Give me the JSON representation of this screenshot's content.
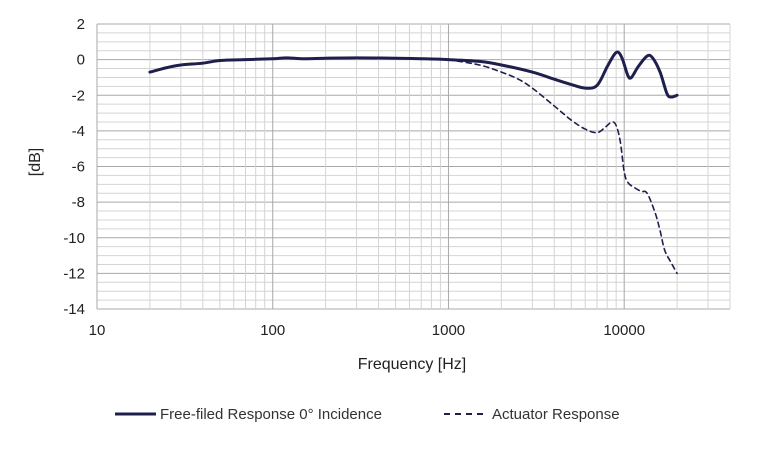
{
  "chart_data": {
    "type": "line",
    "title": "",
    "xlabel": "Frequency [Hz]",
    "ylabel": "[dB]",
    "x_scale": "log",
    "xlim": [
      10,
      40000
    ],
    "ylim": [
      -14,
      2
    ],
    "x_ticks": [
      "10",
      "100",
      "1000",
      "10000"
    ],
    "y_ticks": [
      "2",
      "0",
      "-2",
      "-4",
      "-6",
      "-8",
      "-10",
      "-12",
      "-14"
    ],
    "grid": true,
    "legend_position": "bottom",
    "series": [
      {
        "name": "Free-filed Response 0° Incidence",
        "style": "solid",
        "color": "#1f1f4d",
        "points": [
          [
            20,
            -0.7
          ],
          [
            25,
            -0.45
          ],
          [
            30,
            -0.3
          ],
          [
            40,
            -0.2
          ],
          [
            50,
            -0.05
          ],
          [
            70,
            0.0
          ],
          [
            100,
            0.05
          ],
          [
            120,
            0.1
          ],
          [
            150,
            0.05
          ],
          [
            200,
            0.08
          ],
          [
            300,
            0.1
          ],
          [
            500,
            0.08
          ],
          [
            700,
            0.05
          ],
          [
            1000,
            0.0
          ],
          [
            1500,
            -0.1
          ],
          [
            2000,
            -0.3
          ],
          [
            3000,
            -0.7
          ],
          [
            4000,
            -1.1
          ],
          [
            5000,
            -1.4
          ],
          [
            6000,
            -1.6
          ],
          [
            7000,
            -1.45
          ],
          [
            8000,
            -0.4
          ],
          [
            8800,
            0.3
          ],
          [
            9300,
            0.4
          ],
          [
            9800,
            0.0
          ],
          [
            10500,
            -0.9
          ],
          [
            11000,
            -1.0
          ],
          [
            12000,
            -0.4
          ],
          [
            13500,
            0.2
          ],
          [
            14500,
            0.1
          ],
          [
            16000,
            -0.7
          ],
          [
            17500,
            -1.9
          ],
          [
            18500,
            -2.1
          ],
          [
            20000,
            -2.0
          ]
        ]
      },
      {
        "name": "Actuator Response",
        "style": "dashed",
        "color": "#1f1f4d",
        "points": [
          [
            1000,
            0.0
          ],
          [
            1500,
            -0.3
          ],
          [
            2000,
            -0.7
          ],
          [
            2500,
            -1.1
          ],
          [
            3000,
            -1.6
          ],
          [
            4000,
            -2.6
          ],
          [
            5000,
            -3.4
          ],
          [
            6000,
            -3.9
          ],
          [
            7000,
            -4.1
          ],
          [
            7800,
            -3.8
          ],
          [
            8500,
            -3.5
          ],
          [
            9000,
            -3.7
          ],
          [
            9500,
            -4.6
          ],
          [
            10000,
            -6.3
          ],
          [
            10500,
            -6.9
          ],
          [
            11500,
            -7.2
          ],
          [
            12500,
            -7.4
          ],
          [
            13500,
            -7.5
          ],
          [
            15000,
            -8.6
          ],
          [
            16000,
            -9.6
          ],
          [
            17000,
            -10.7
          ],
          [
            18500,
            -11.4
          ],
          [
            20000,
            -12.0
          ]
        ]
      }
    ]
  },
  "legend": {
    "items": [
      "Free-filed Response 0° Incidence",
      "Actuator Response"
    ]
  }
}
